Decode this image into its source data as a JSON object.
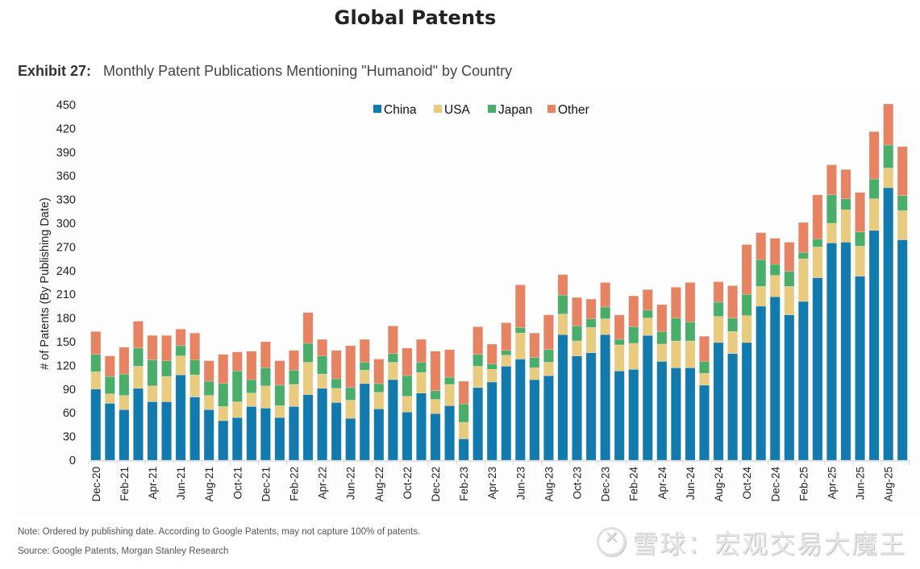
{
  "header": {
    "title": "Global Patents",
    "exhibit_number": "Exhibit 27:",
    "exhibit_title": "Monthly Patent Publications Mentioning \"Humanoid\" by Country"
  },
  "footer": {
    "note": "Note: Ordered by publishing date. According to Google Patents, may not capture 100% of patents.",
    "source": "Source: Google Patents, Morgan Stanley Research",
    "watermark": "雪球：宏观交易大魔王"
  },
  "chart_data": {
    "type": "bar",
    "stacked": true,
    "title": "Monthly Patent Publications Mentioning \"Humanoid\" by Country",
    "xlabel": "",
    "ylabel": "# of Patents (By Publishing Date)",
    "ylim": [
      0,
      450
    ],
    "yticks": [
      0,
      30,
      60,
      90,
      120,
      150,
      180,
      210,
      240,
      270,
      300,
      330,
      360,
      390,
      420,
      450
    ],
    "grid": false,
    "legend_position": "top-center",
    "colors": {
      "China": "#137aae",
      "USA": "#e8cb7f",
      "Japan": "#4aad6a",
      "Other": "#e68363"
    },
    "categories": [
      "Dec-20",
      "Jan-21",
      "Feb-21",
      "Mar-21",
      "Apr-21",
      "May-21",
      "Jun-21",
      "Jul-21",
      "Aug-21",
      "Sep-21",
      "Oct-21",
      "Nov-21",
      "Dec-21",
      "Jan-22",
      "Feb-22",
      "Mar-22",
      "Apr-22",
      "May-22",
      "Jun-22",
      "Jul-22",
      "Aug-22",
      "Sep-22",
      "Oct-22",
      "Nov-22",
      "Dec-22",
      "Jan-23",
      "Feb-23",
      "Mar-23",
      "Apr-23",
      "May-23",
      "Jun-23",
      "Jul-23",
      "Aug-23",
      "Sep-23",
      "Oct-23",
      "Nov-23",
      "Dec-23",
      "Jan-24",
      "Feb-24",
      "Mar-24",
      "Apr-24",
      "May-24",
      "Jun-24",
      "Jul-24",
      "Aug-24",
      "Sep-24",
      "Oct-24",
      "Nov-24",
      "Dec-24",
      "Jan-25",
      "Feb-25",
      "Mar-25",
      "Apr-25",
      "May-25",
      "Jun-25",
      "Jul-25",
      "Aug-25",
      "Sep-25"
    ],
    "tick_labels_shown": [
      "Dec-20",
      "Feb-21",
      "Apr-21",
      "Jun-21",
      "Aug-21",
      "Oct-21",
      "Dec-21",
      "Feb-22",
      "Apr-22",
      "Jun-22",
      "Aug-22",
      "Oct-22",
      "Dec-22",
      "Feb-23",
      "Apr-23",
      "Jun-23",
      "Aug-23",
      "Oct-23",
      "Dec-23",
      "Feb-24",
      "Apr-24",
      "Jun-24",
      "Aug-24",
      "Oct-24",
      "Dec-24",
      "Feb-25",
      "Apr-25",
      "Jun-25",
      "Aug-25"
    ],
    "series": [
      {
        "name": "China",
        "values": [
          90,
          72,
          64,
          91,
          74,
          74,
          108,
          80,
          64,
          50,
          54,
          68,
          66,
          54,
          68,
          83,
          91,
          73,
          53,
          97,
          65,
          102,
          61,
          85,
          59,
          69,
          27,
          92,
          99,
          119,
          128,
          102,
          107,
          159,
          132,
          136,
          159,
          113,
          115,
          158,
          125,
          117,
          117,
          95,
          149,
          135,
          149,
          195,
          207,
          184,
          201,
          231,
          275,
          276,
          233,
          291,
          345,
          279
        ]
      },
      {
        "name": "USA",
        "values": [
          22,
          12,
          18,
          28,
          20,
          32,
          24,
          28,
          18,
          18,
          20,
          17,
          28,
          15,
          28,
          41,
          18,
          18,
          23,
          17,
          21,
          22,
          20,
          26,
          18,
          27,
          21,
          27,
          16,
          14,
          33,
          15,
          17,
          26,
          19,
          32,
          20,
          33,
          33,
          22,
          22,
          34,
          34,
          15,
          33,
          28,
          34,
          25,
          27,
          36,
          54,
          39,
          25,
          41,
          38,
          40,
          25,
          37
        ]
      },
      {
        "name": "Japan",
        "values": [
          22,
          22,
          27,
          23,
          33,
          20,
          13,
          19,
          18,
          29,
          39,
          17,
          23,
          26,
          18,
          24,
          23,
          12,
          16,
          10,
          11,
          11,
          26,
          13,
          11,
          9,
          23,
          15,
          7,
          6,
          7,
          13,
          16,
          24,
          19,
          11,
          15,
          7,
          21,
          10,
          16,
          29,
          24,
          15,
          18,
          17,
          27,
          34,
          14,
          19,
          8,
          10,
          36,
          14,
          18,
          25,
          29,
          19
        ]
      },
      {
        "name": "Other",
        "values": [
          29,
          26,
          34,
          34,
          31,
          32,
          21,
          34,
          26,
          37,
          24,
          36,
          33,
          31,
          25,
          39,
          21,
          36,
          53,
          29,
          31,
          35,
          35,
          29,
          50,
          35,
          29,
          35,
          25,
          35,
          54,
          31,
          44,
          26,
          36,
          25,
          31,
          31,
          39,
          26,
          34,
          39,
          50,
          32,
          26,
          41,
          63,
          34,
          33,
          37,
          38,
          56,
          38,
          37,
          50,
          60,
          52,
          62
        ]
      }
    ]
  }
}
